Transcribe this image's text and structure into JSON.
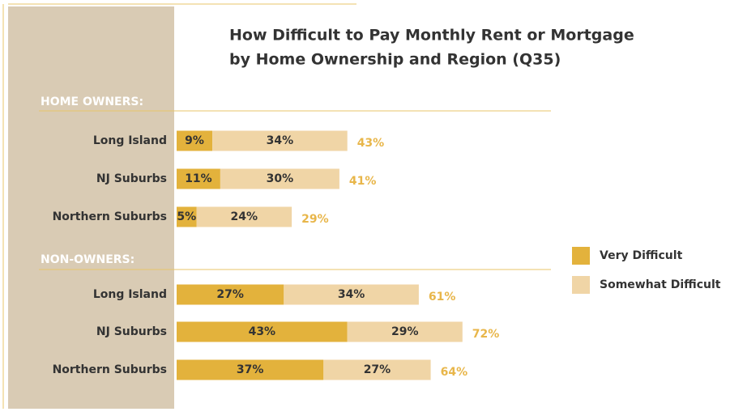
{
  "chart_data": {
    "type": "stacked-bar",
    "orientation": "horizontal",
    "title": [
      "How Difficult to Pay Monthly Rent or Mortgage",
      "by Home Ownership and Region (Q35)"
    ],
    "group_labels": [
      "HOME OWNERS:",
      "NON-OWNERS:"
    ],
    "categories": [
      "Long Island",
      "NJ Suburbs",
      "Northern Suburbs",
      "Long Island",
      "NJ Suburbs",
      "Northern Suburbs"
    ],
    "series": [
      {
        "name": "Very Difficult",
        "color": "#e3b23c",
        "values": [
          9,
          11,
          5,
          27,
          43,
          37
        ],
        "value_labels": [
          "9%",
          "11%",
          "5%",
          "27%",
          "43%",
          "37%"
        ]
      },
      {
        "name": "Somewhat Difficult",
        "color": "#f0d5a6",
        "values": [
          34,
          30,
          24,
          34,
          29,
          27
        ],
        "value_labels": [
          "34%",
          "30%",
          "24%",
          "34%",
          "29%",
          "27%"
        ]
      }
    ],
    "totals": [
      43,
      41,
      29,
      61,
      72,
      64
    ],
    "total_labels": [
      "43%",
      "41%",
      "29%",
      "61%",
      "72%",
      "64%"
    ],
    "total_color": "#e8b64a",
    "legend": "right"
  }
}
